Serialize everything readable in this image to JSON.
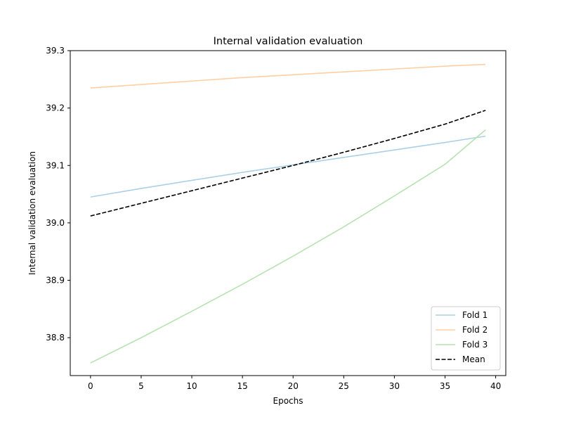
{
  "chart_data": {
    "type": "line",
    "title": "Internal validation evaluation",
    "xlabel": "Epochs",
    "ylabel": "Internal validation evaluation",
    "xlim": [
      -2,
      41
    ],
    "ylim": [
      38.734,
      39.3
    ],
    "xticks": [
      0,
      5,
      10,
      15,
      20,
      25,
      30,
      35,
      40
    ],
    "xtick_labels": [
      "0",
      "5",
      "10",
      "15",
      "20",
      "25",
      "30",
      "35",
      "40"
    ],
    "yticks": [
      38.8,
      38.9,
      39.0,
      39.1,
      39.2,
      39.3
    ],
    "ytick_labels": [
      "38.8",
      "38.9",
      "39.0",
      "39.1",
      "39.2",
      "39.3"
    ],
    "grid": false,
    "legend_position": "lower-right",
    "x": [
      0,
      5,
      10,
      15,
      20,
      25,
      30,
      35,
      39
    ],
    "series": [
      {
        "name": "Fold 1",
        "color": "#abd0e6",
        "dash": "solid",
        "values": [
          39.045,
          39.06,
          39.074,
          39.088,
          39.101,
          39.114,
          39.127,
          39.14,
          39.151
        ]
      },
      {
        "name": "Fold 2",
        "color": "#fdd0a2",
        "dash": "solid",
        "values": [
          39.235,
          39.241,
          39.247,
          39.253,
          39.258,
          39.263,
          39.268,
          39.273,
          39.276
        ]
      },
      {
        "name": "Fold 3",
        "color": "#b7e2b1",
        "dash": "solid",
        "values": [
          38.756,
          38.8,
          38.846,
          38.893,
          38.942,
          38.993,
          39.047,
          39.102,
          39.162
        ]
      },
      {
        "name": "Mean",
        "color": "#000000",
        "dash": "dashed",
        "values": [
          39.012,
          39.034,
          39.056,
          39.078,
          39.1,
          39.123,
          39.147,
          39.172,
          39.196
        ]
      }
    ]
  }
}
